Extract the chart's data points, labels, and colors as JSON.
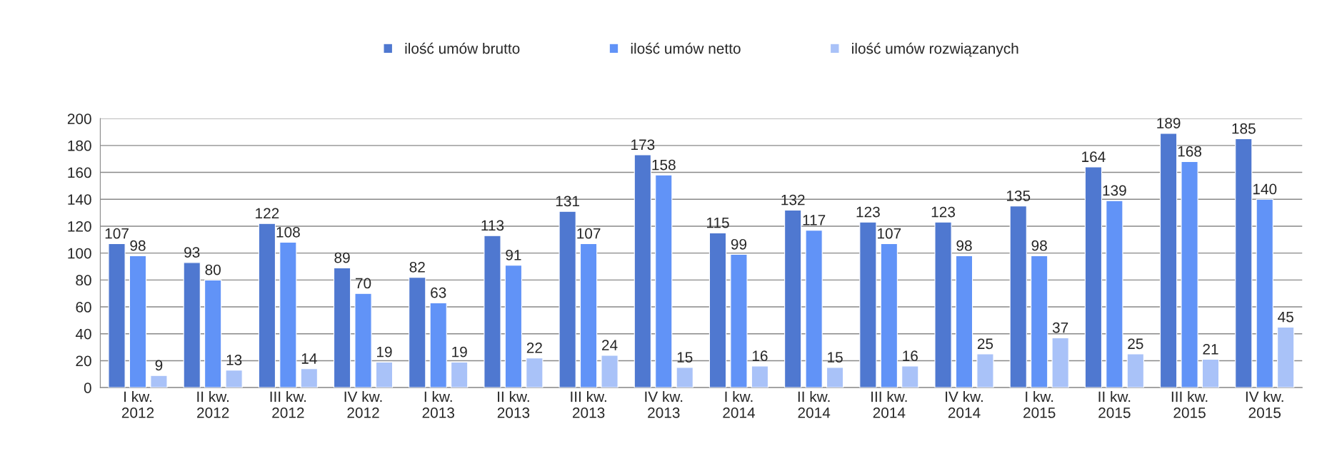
{
  "chart_data": {
    "type": "bar",
    "categories": [
      "I kw.\n2012",
      "II kw.\n2012",
      "III kw.\n2012",
      "IV kw.\n2012",
      "I kw.\n2013",
      "II kw.\n2013",
      "III kw.\n2013",
      "IV kw.\n2013",
      "I kw.\n2014",
      "II kw.\n2014",
      "III kw.\n2014",
      "IV kw.\n2014",
      "I kw.\n2015",
      "II kw.\n2015",
      "III kw.\n2015",
      "IV kw.\n2015"
    ],
    "series": [
      {
        "name": "ilość umów brutto",
        "color": "#4f78d0",
        "values": [
          107,
          93,
          122,
          89,
          82,
          113,
          131,
          173,
          115,
          132,
          123,
          123,
          135,
          164,
          189,
          185
        ]
      },
      {
        "name": "ilość umów netto",
        "color": "#6193f7",
        "values": [
          98,
          80,
          108,
          70,
          63,
          91,
          107,
          158,
          99,
          117,
          107,
          98,
          98,
          139,
          168,
          140
        ]
      },
      {
        "name": "ilość umów rozwiązanych",
        "color": "#a9c2f8",
        "values": [
          9,
          13,
          14,
          19,
          19,
          22,
          24,
          15,
          16,
          15,
          16,
          25,
          37,
          25,
          21,
          45
        ]
      }
    ],
    "ylim": [
      0,
      200
    ],
    "yticks": [
      0,
      20,
      40,
      60,
      80,
      100,
      120,
      140,
      160,
      180,
      200
    ],
    "grid": "y",
    "legend": "top",
    "data_labels": true
  }
}
